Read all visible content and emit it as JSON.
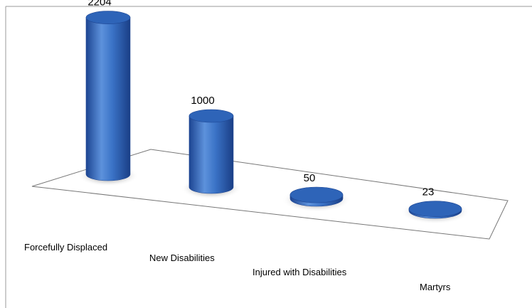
{
  "chart_data": {
    "type": "bar",
    "style": "3d-cylinder",
    "categories": [
      "Forcefully Displaced",
      "New Disabilities",
      "Injured with Disabilities",
      "Martyrs"
    ],
    "values": [
      2204,
      1000,
      50,
      23
    ],
    "title": "",
    "xlabel": "",
    "ylabel": "",
    "ylim": [
      0,
      2400
    ],
    "grid": false,
    "legend": "none",
    "data_labels": true,
    "colors": {
      "bar": "#2e64b8",
      "bar_dark": "#1d4592",
      "bar_light": "#5d92dc",
      "floor_stroke": "#777777",
      "frame_stroke": "#999999"
    }
  }
}
